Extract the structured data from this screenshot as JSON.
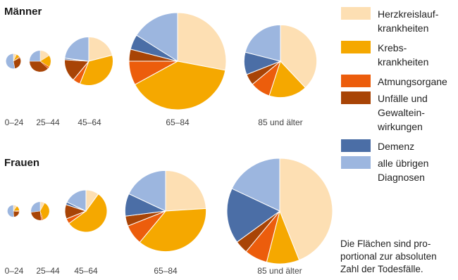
{
  "chart_data": {
    "type": "pie",
    "categories": [
      {
        "key": "herz",
        "label": "Herzkreislauf-\nkrankheiten",
        "color": "#FDDFB3"
      },
      {
        "key": "krebs",
        "label": "Krebs-\nkrankheiten",
        "color": "#F5A800"
      },
      {
        "key": "atmung",
        "label": "Atmungsorgane",
        "color": "#EC5D0C"
      },
      {
        "key": "unfall",
        "label": "Unfälle und\nGewaltein-\nwirkungen",
        "color": "#A84406"
      },
      {
        "key": "demenz",
        "label": "Demenz",
        "color": "#4B6EA6"
      },
      {
        "key": "uebrige",
        "label": "alle übrigen\nDiagnosen",
        "color": "#9CB6DF"
      }
    ],
    "groups": [
      {
        "title": "Männer",
        "pies": [
          {
            "age": "0–24",
            "relative_area": 0.024,
            "shares": [
              7,
              8,
              2,
              30,
              0,
              53
            ]
          },
          {
            "age": "25–44",
            "relative_area": 0.049,
            "shares": [
              16,
              18,
              3,
              38,
              0,
              25
            ]
          },
          {
            "age": "45–64",
            "relative_area": 0.25,
            "shares": [
              21,
              35,
              5,
              15,
              1,
              23
            ]
          },
          {
            "age": "65–84",
            "relative_area": 1.0,
            "shares": [
              28,
              39,
              8,
              4,
              5,
              16
            ]
          },
          {
            "age": "85 und älter",
            "relative_area": 0.56,
            "shares": [
              38,
              17,
              9,
              5,
              10,
              21
            ]
          }
        ]
      },
      {
        "title": "Frauen",
        "pies": [
          {
            "age": "0–24",
            "relative_area": 0.013,
            "shares": [
              10,
              14,
              3,
              22,
              0,
              51
            ]
          },
          {
            "age": "25–44",
            "relative_area": 0.031,
            "shares": [
              8,
              37,
              3,
              25,
              0,
              27
            ]
          },
          {
            "age": "45–64",
            "relative_area": 0.16,
            "shares": [
              10,
              55,
              4,
              11,
              2,
              18
            ]
          },
          {
            "age": "65–84",
            "relative_area": 0.59,
            "shares": [
              24,
              37,
              8,
              4,
              9,
              18
            ]
          },
          {
            "age": "85 und älter",
            "relative_area": 1.0,
            "shares": [
              44,
              10,
              7,
              4,
              17,
              18
            ]
          }
        ]
      }
    ],
    "note": "Die Flächen sind pro-\nportional zur absoluten\nZahl der Todesfälle."
  }
}
